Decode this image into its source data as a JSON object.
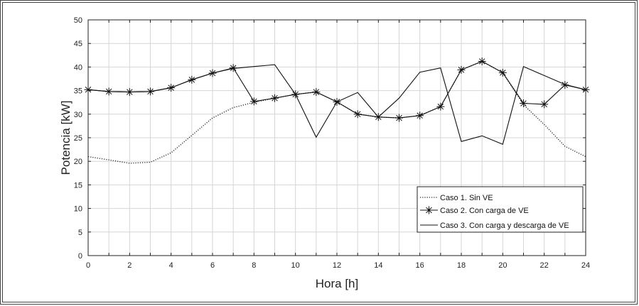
{
  "chart_data": {
    "type": "line",
    "title": "",
    "xlabel": "Hora [h]",
    "ylabel": "Potencia [kW]",
    "xlim": [
      0,
      24
    ],
    "ylim": [
      0,
      50
    ],
    "xticks": [
      0,
      2,
      4,
      6,
      8,
      10,
      12,
      14,
      16,
      18,
      20,
      22,
      24
    ],
    "yticks": [
      0,
      5,
      10,
      15,
      20,
      25,
      30,
      35,
      40,
      45,
      50
    ],
    "grid": true,
    "legend_position": "bottom-right",
    "series": [
      {
        "name": "Caso 1. Sin VE",
        "style": "dotted",
        "x": [
          0,
          1,
          2,
          3,
          4,
          5,
          6,
          7,
          8,
          9,
          10,
          11,
          12,
          13,
          14,
          15,
          16,
          17,
          18,
          19,
          20,
          21,
          22,
          23,
          24
        ],
        "values": [
          21,
          20.3,
          19.6,
          19.8,
          21.8,
          25.5,
          29.2,
          31.4,
          32.5,
          33.4,
          34.2,
          34.7,
          32.6,
          30,
          29.4,
          29.2,
          29.7,
          31.6,
          39.4,
          41.2,
          38.8,
          32,
          27.8,
          23.2,
          21
        ]
      },
      {
        "name": "Caso 2. Con carga de VE",
        "style": "solid-star",
        "x": [
          0,
          1,
          2,
          3,
          4,
          5,
          6,
          7,
          8,
          9,
          10,
          11,
          12,
          13,
          14,
          15,
          16,
          17,
          18,
          19,
          20,
          21,
          22,
          23,
          24
        ],
        "values": [
          35.2,
          34.8,
          34.7,
          34.8,
          35.6,
          37.3,
          38.7,
          39.8,
          32.7,
          33.4,
          34.2,
          34.7,
          32.6,
          30,
          29.4,
          29.2,
          29.7,
          31.6,
          39.4,
          41.2,
          38.8,
          32.3,
          32.1,
          36.2,
          35.2
        ]
      },
      {
        "name": "Caso 3. Con carga y descarga de VE",
        "style": "solid",
        "x": [
          0,
          1,
          2,
          3,
          4,
          5,
          6,
          7,
          8,
          9,
          10,
          11,
          12,
          13,
          14,
          15,
          16,
          17,
          18,
          19,
          20,
          21,
          22,
          23,
          24
        ],
        "values": [
          35.2,
          34.8,
          34.7,
          34.8,
          35.6,
          37.3,
          38.7,
          39.7,
          40.1,
          40.5,
          34.2,
          25.1,
          32.6,
          34.6,
          29.4,
          33.4,
          38.9,
          39.8,
          24.2,
          25.4,
          23.6,
          40.1,
          38.2,
          36.3,
          35.2
        ]
      }
    ]
  }
}
